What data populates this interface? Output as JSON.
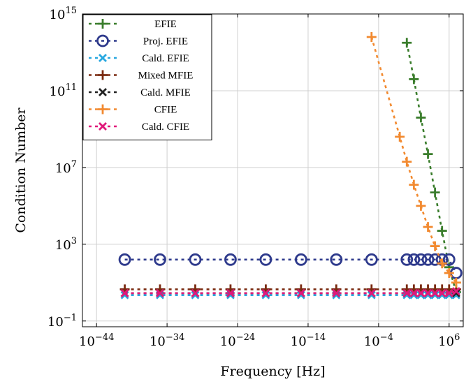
{
  "chart_data": {
    "type": "line",
    "title": "",
    "xlabel": "Frequency [Hz]",
    "ylabel": "Condition Number",
    "x_scale": "log",
    "y_scale": "log",
    "xlim_exp": [
      -46,
      8
    ],
    "ylim_exp": [
      -1.3,
      15
    ],
    "x_ticks": [
      {
        "exp": -44,
        "base": "10",
        "power": "−44"
      },
      {
        "exp": -34,
        "base": "10",
        "power": "−34"
      },
      {
        "exp": -24,
        "base": "10",
        "power": "−24"
      },
      {
        "exp": -14,
        "base": "10",
        "power": "−14"
      },
      {
        "exp": -4,
        "base": "10",
        "power": "−4"
      },
      {
        "exp": 6,
        "base": "10",
        "power": "6"
      }
    ],
    "y_ticks": [
      {
        "exp": -1,
        "base": "10",
        "power": "−1"
      },
      {
        "exp": 3,
        "base": "10",
        "power": "3"
      },
      {
        "exp": 7,
        "base": "10",
        "power": "7"
      },
      {
        "exp": 11,
        "base": "10",
        "power": "11"
      },
      {
        "exp": 15,
        "base": "10",
        "power": "15"
      }
    ],
    "grid": true,
    "legend_position": "top-left",
    "series": [
      {
        "name": "EFIE",
        "color": "#3a7d2c",
        "marker": "plus",
        "x_exp": [
          0,
          1,
          2,
          3,
          4,
          5,
          6,
          7
        ],
        "y_exp": [
          13.5,
          11.6,
          9.6,
          7.7,
          5.7,
          3.7,
          1.8,
          0.5
        ]
      },
      {
        "name": "Proj. EFIE",
        "color": "#2e3a8c",
        "marker": "circle",
        "x_exp": [
          -40,
          -35,
          -30,
          -25,
          -20,
          -15,
          -10,
          -5,
          0,
          1,
          2,
          3,
          4,
          5,
          6,
          7
        ],
        "y_exp": [
          2.2,
          2.2,
          2.2,
          2.2,
          2.2,
          2.2,
          2.2,
          2.2,
          2.2,
          2.2,
          2.2,
          2.2,
          2.2,
          2.2,
          2.2,
          1.5
        ]
      },
      {
        "name": "Cald. EFIE",
        "color": "#29a8e0",
        "marker": "cross",
        "x_exp": [
          -40,
          -35,
          -30,
          -25,
          -20,
          -15,
          -10,
          -5,
          0,
          1,
          2,
          3,
          4,
          5,
          6,
          7
        ],
        "y_exp": [
          0.35,
          0.35,
          0.35,
          0.35,
          0.35,
          0.35,
          0.35,
          0.35,
          0.35,
          0.35,
          0.35,
          0.35,
          0.35,
          0.35,
          0.35,
          0.35
        ]
      },
      {
        "name": "Mixed MFIE",
        "color": "#7a2a10",
        "marker": "plus",
        "x_exp": [
          -40,
          -35,
          -30,
          -25,
          -20,
          -15,
          -10,
          -5,
          0,
          1,
          2,
          3,
          4,
          5,
          6,
          7
        ],
        "y_exp": [
          0.65,
          0.65,
          0.65,
          0.65,
          0.65,
          0.65,
          0.65,
          0.65,
          0.65,
          0.65,
          0.65,
          0.65,
          0.65,
          0.65,
          0.65,
          0.65
        ]
      },
      {
        "name": "Cald. MFIE",
        "color": "#222222",
        "marker": "cross",
        "x_exp": [
          -40,
          -35,
          -30,
          -25,
          -20,
          -15,
          -10,
          -5,
          0,
          1,
          2,
          3,
          4,
          5,
          6,
          7
        ],
        "y_exp": [
          0.45,
          0.45,
          0.45,
          0.45,
          0.45,
          0.45,
          0.45,
          0.45,
          0.45,
          0.45,
          0.45,
          0.45,
          0.45,
          0.45,
          0.45,
          0.45
        ]
      },
      {
        "name": "CFIE",
        "color": "#f28a30",
        "marker": "plus",
        "x_exp": [
          -5,
          -1,
          0,
          1,
          2,
          3,
          4,
          5,
          6,
          7
        ],
        "y_exp": [
          13.8,
          8.6,
          7.3,
          6.1,
          5.0,
          3.9,
          2.9,
          2.0,
          1.5,
          1.0
        ]
      },
      {
        "name": "Cald. CFIE",
        "color": "#e0187a",
        "marker": "cross",
        "x_exp": [
          -40,
          -35,
          -30,
          -25,
          -20,
          -15,
          -10,
          -5,
          0,
          1,
          2,
          3,
          4,
          5,
          6,
          7
        ],
        "y_exp": [
          0.45,
          0.45,
          0.45,
          0.45,
          0.45,
          0.45,
          0.45,
          0.45,
          0.45,
          0.45,
          0.45,
          0.45,
          0.45,
          0.45,
          0.45,
          0.55
        ]
      }
    ]
  }
}
